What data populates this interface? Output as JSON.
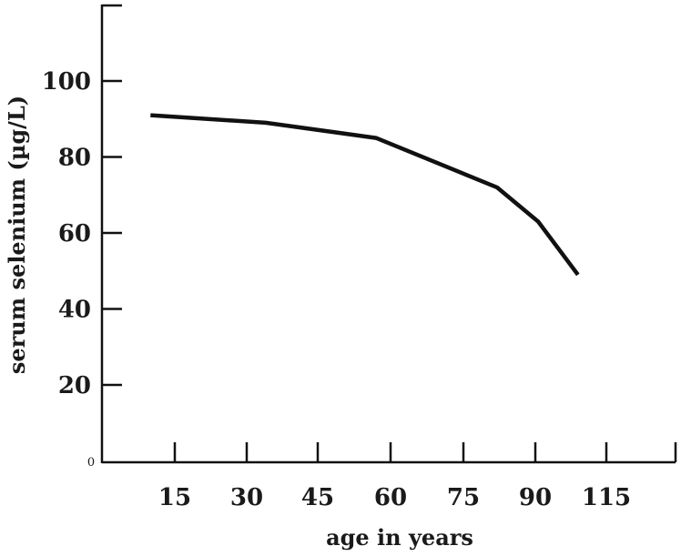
{
  "chart_data": {
    "type": "line",
    "title": "",
    "xlabel": "age in years",
    "ylabel": "serum selenium (µg/L)",
    "x_tick_labels": [
      "15",
      "30",
      "45",
      "60",
      "75",
      "90",
      "115"
    ],
    "y_tick_labels": [
      "20",
      "40",
      "60",
      "80",
      "100"
    ],
    "y_ticks": [
      20,
      40,
      60,
      80,
      100
    ],
    "origin_label": "0",
    "ylim": [
      0,
      120
    ],
    "grid": false,
    "legend": "none",
    "line_color": "#111111",
    "series": [
      {
        "x": [
          10,
          34,
          57,
          82,
          91,
          105
        ],
        "y": [
          91,
          89,
          85,
          72,
          63,
          49
        ]
      }
    ]
  }
}
